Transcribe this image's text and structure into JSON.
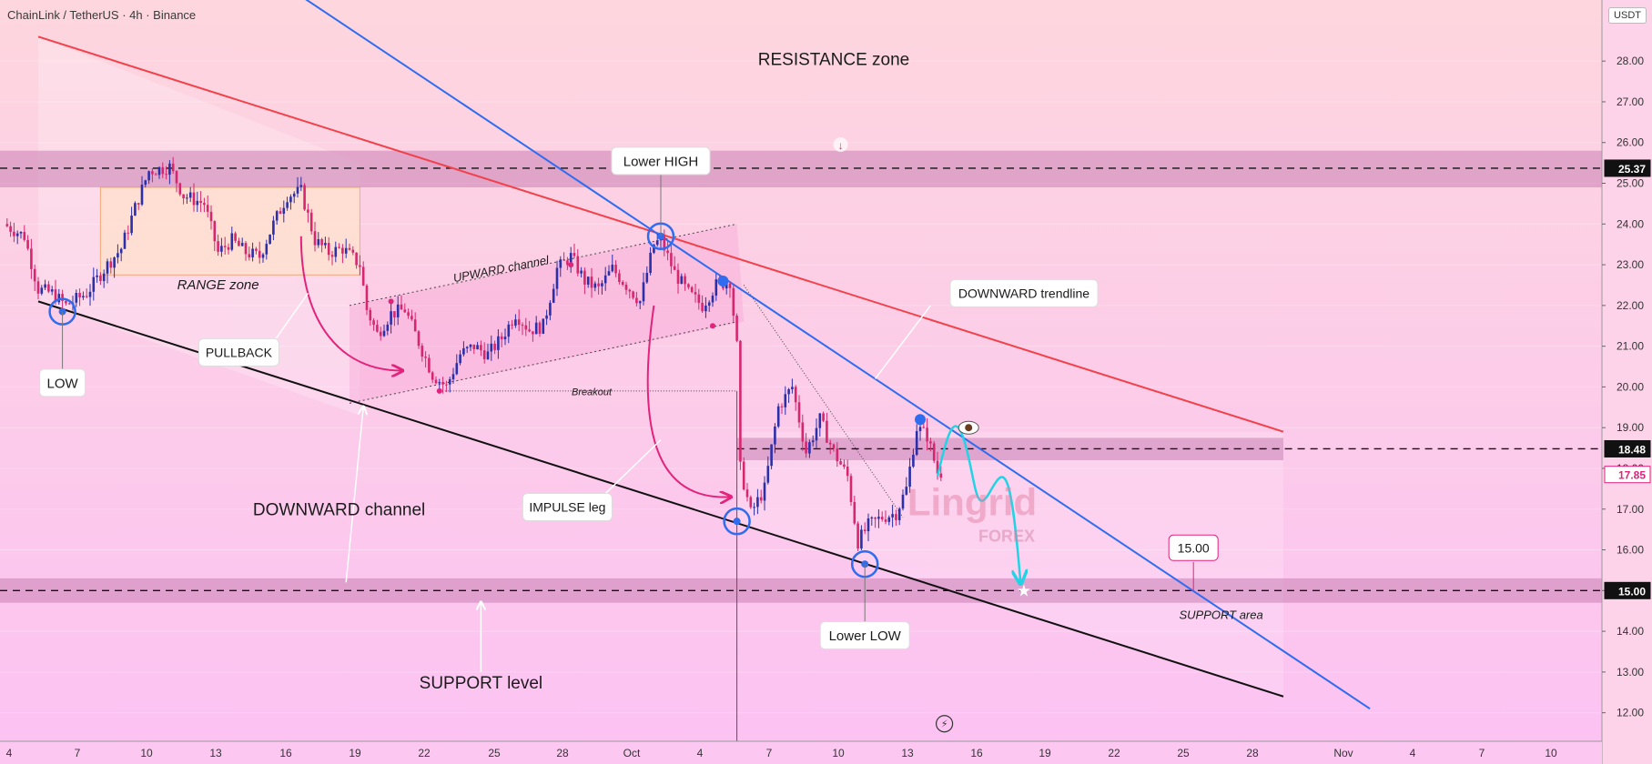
{
  "header": {
    "title": "ChainLink / TetherUS · 4h · Binance",
    "unit": "USDT"
  },
  "colors": {
    "bg_top": "#fdd6de",
    "bg_bottom": "#fcc2f3",
    "bull": "#2b2fa8",
    "bear": "#d6276e",
    "zone": "#c97fb5",
    "red_line": "#f2414a",
    "blue_line": "#2f6cf0",
    "black_line": "#111111",
    "accent": "#e3227b",
    "path": "#22d3e6"
  },
  "chart_data": {
    "type": "candlestick",
    "x_axis": {
      "ticks": [
        "4",
        "7",
        "10",
        "13",
        "16",
        "19",
        "22",
        "25",
        "28",
        "Oct",
        "4",
        "7",
        "10",
        "13",
        "16",
        "19",
        "22",
        "25",
        "28",
        "Nov",
        "4",
        "7",
        "10"
      ]
    },
    "y_axis": {
      "ticks": [
        12,
        13,
        14,
        15,
        16,
        17,
        18,
        19,
        20,
        21,
        22,
        23,
        24,
        25,
        26,
        27,
        28
      ],
      "range": [
        11.3,
        29.5
      ]
    },
    "price_labels": [
      {
        "value": 25.37,
        "text": "25.37",
        "style": "dark"
      },
      {
        "value": 18.48,
        "text": "18.48",
        "style": "dark"
      },
      {
        "value": 17.85,
        "text": "17.85",
        "style": "pink"
      },
      {
        "value": 15.0,
        "text": "15.00",
        "style": "dark"
      }
    ],
    "levels": [
      25.37,
      18.48,
      15.0
    ],
    "candle_path": [
      [
        0,
        24.0
      ],
      [
        6,
        23.7
      ],
      [
        10,
        22.4
      ],
      [
        14,
        22.3
      ],
      [
        18,
        22.0
      ],
      [
        24,
        22.3
      ],
      [
        30,
        23.0
      ],
      [
        34,
        23.4
      ],
      [
        38,
        24.4
      ],
      [
        42,
        25.3
      ],
      [
        48,
        25.4
      ],
      [
        52,
        24.7
      ],
      [
        58,
        24.5
      ],
      [
        62,
        23.3
      ],
      [
        66,
        23.6
      ],
      [
        70,
        23.3
      ],
      [
        74,
        23.2
      ],
      [
        78,
        24.0
      ],
      [
        82,
        24.7
      ],
      [
        86,
        24.8
      ],
      [
        90,
        23.6
      ],
      [
        94,
        23.3
      ],
      [
        98,
        23.4
      ],
      [
        103,
        23.0
      ],
      [
        105,
        21.9
      ],
      [
        108,
        21.3
      ],
      [
        112,
        21.8
      ],
      [
        116,
        21.9
      ],
      [
        120,
        21.1
      ],
      [
        124,
        20.3
      ],
      [
        128,
        20.0
      ],
      [
        132,
        20.8
      ],
      [
        136,
        21.0
      ],
      [
        140,
        20.8
      ],
      [
        144,
        21.2
      ],
      [
        148,
        21.8
      ],
      [
        152,
        21.4
      ],
      [
        156,
        21.5
      ],
      [
        160,
        22.9
      ],
      [
        164,
        23.2
      ],
      [
        168,
        22.6
      ],
      [
        172,
        22.4
      ],
      [
        176,
        22.9
      ],
      [
        180,
        22.5
      ],
      [
        184,
        22.1
      ],
      [
        188,
        23.5
      ],
      [
        190,
        23.6
      ],
      [
        194,
        22.8
      ],
      [
        198,
        22.3
      ],
      [
        202,
        22.0
      ],
      [
        206,
        22.5
      ],
      [
        210,
        22.6
      ],
      [
        212,
        21.0
      ],
      [
        213,
        18.0
      ],
      [
        216,
        16.9
      ],
      [
        220,
        17.5
      ],
      [
        224,
        19.5
      ],
      [
        228,
        20.0
      ],
      [
        232,
        18.4
      ],
      [
        236,
        19.2
      ],
      [
        240,
        18.4
      ],
      [
        244,
        17.8
      ],
      [
        247,
        16.2
      ],
      [
        250,
        16.6
      ],
      [
        254,
        16.8
      ],
      [
        258,
        16.9
      ],
      [
        261,
        17.5
      ],
      [
        264,
        19.0
      ],
      [
        267,
        18.8
      ],
      [
        270,
        17.9
      ]
    ],
    "channels": {
      "black_trendline": [
        [
          10,
          22.1
        ],
        [
          370,
          12.4
        ]
      ],
      "red_trendline": [
        [
          10,
          28.6
        ],
        [
          370,
          18.9
        ]
      ],
      "blue_trendline": [
        [
          70,
          30.5
        ],
        [
          395,
          12.1
        ]
      ],
      "upward_channel_upper": [
        [
          100,
          22.0
        ],
        [
          212,
          24.0
        ]
      ],
      "upward_channel_lower": [
        [
          100,
          19.6
        ],
        [
          212,
          21.7
        ]
      ]
    },
    "pivots": [
      {
        "i": 17,
        "v": 21.85
      },
      {
        "i": 190,
        "v": 23.7
      },
      {
        "i": 212,
        "v": 16.7
      },
      {
        "i": 249,
        "v": 15.65
      }
    ],
    "annotations": {
      "title": "RESISTANCE zone",
      "range_zone": "RANGE zone",
      "upward_channel": "UPWARD channel",
      "breakout": "Breakout",
      "low": "LOW",
      "pullback": "PULLBACK",
      "downward_channel": "DOWNWARD channel",
      "lower_high": "Lower HIGH",
      "impulse_leg": "IMPULSE leg",
      "downward_trendline": "DOWNWARD trendline",
      "lower_low": "Lower LOW",
      "support_level": "SUPPORT level",
      "support_area": "SUPPORT area",
      "target": "15.00",
      "watermark_main": "Lingrid",
      "watermark_sub": "FOREX"
    }
  }
}
